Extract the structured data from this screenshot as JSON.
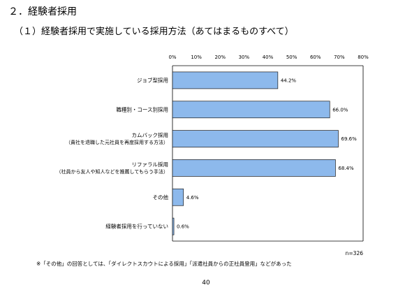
{
  "heading": "２．経験者採用",
  "subheading": "（１）経験者採用で実施している採用方法（あてはまるものすべて）",
  "footnote": "※「その他」の回答としては、「ダイレクトスカウトによる採用」「派遣社員からの正社員登用」などがあった",
  "page_number": "40",
  "colors": {
    "bar": "#8DB9EC",
    "bar_edge": "#1a1a1a"
  },
  "chart_data": {
    "type": "bar",
    "orientation": "horizontal",
    "categories": [
      [
        "ジョブ型採用"
      ],
      [
        "職種別・コース別採用"
      ],
      [
        "カムバック採用",
        "（貴社を退職した元社員を再度採用する方法）"
      ],
      [
        "リファラル採用",
        "（社員から友人や知人などを推薦してもらう手法）"
      ],
      [
        "その他"
      ],
      [
        "経験者採用を行っていない"
      ]
    ],
    "values": [
      44.2,
      66.0,
      69.6,
      68.4,
      4.6,
      0.6
    ],
    "value_labels": [
      "44.2%",
      "66.0%",
      "69.6%",
      "68.4%",
      "4.6%",
      "0.6%"
    ],
    "xlim": [
      0,
      80
    ],
    "ticks": [
      0,
      10,
      20,
      30,
      40,
      50,
      60,
      70,
      80
    ],
    "tick_labels": [
      "0%",
      "10%",
      "20%",
      "30%",
      "40%",
      "50%",
      "60%",
      "70%",
      "80%"
    ],
    "sample_size": "n=326",
    "grid": false
  }
}
